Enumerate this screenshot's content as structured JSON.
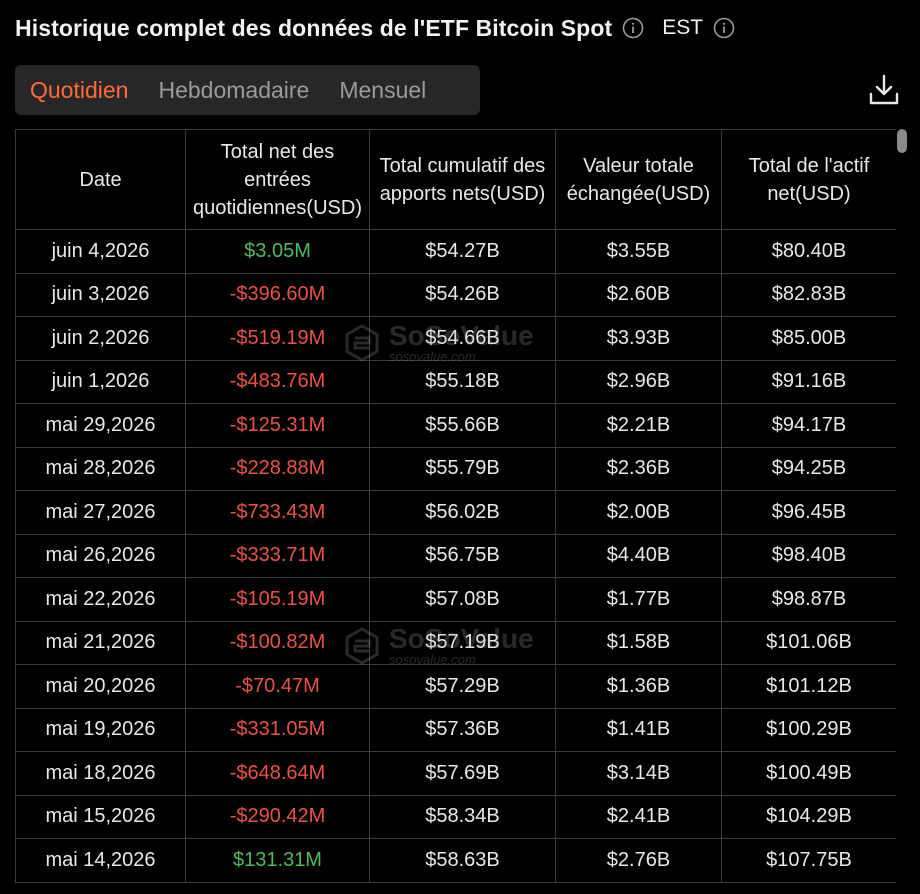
{
  "header": {
    "title": "Historique complet des données de l'ETF Bitcoin Spot",
    "timezone": "EST"
  },
  "tabs": [
    {
      "label": "Quotidien",
      "active": true
    },
    {
      "label": "Hebdomadaire",
      "active": false
    },
    {
      "label": "Mensuel",
      "active": false
    }
  ],
  "table": {
    "columns": [
      "Date",
      "Total net des entrées quotidiennes(USD)",
      "Total cumulatif des apports nets(USD)",
      "Valeur totale échangée(USD)",
      "Total de l'actif net(USD)"
    ],
    "rows": [
      {
        "date": "juin 4,2026",
        "daily_net_inflow": "$3.05M",
        "cumulative_net_inflow": "$54.27B",
        "total_value_traded": "$3.55B",
        "total_net_assets": "$80.40B"
      },
      {
        "date": "juin 3,2026",
        "daily_net_inflow": "-$396.60M",
        "cumulative_net_inflow": "$54.26B",
        "total_value_traded": "$2.60B",
        "total_net_assets": "$82.83B"
      },
      {
        "date": "juin 2,2026",
        "daily_net_inflow": "-$519.19M",
        "cumulative_net_inflow": "$54.66B",
        "total_value_traded": "$3.93B",
        "total_net_assets": "$85.00B"
      },
      {
        "date": "juin 1,2026",
        "daily_net_inflow": "-$483.76M",
        "cumulative_net_inflow": "$55.18B",
        "total_value_traded": "$2.96B",
        "total_net_assets": "$91.16B"
      },
      {
        "date": "mai 29,2026",
        "daily_net_inflow": "-$125.31M",
        "cumulative_net_inflow": "$55.66B",
        "total_value_traded": "$2.21B",
        "total_net_assets": "$94.17B"
      },
      {
        "date": "mai 28,2026",
        "daily_net_inflow": "-$228.88M",
        "cumulative_net_inflow": "$55.79B",
        "total_value_traded": "$2.36B",
        "total_net_assets": "$94.25B"
      },
      {
        "date": "mai 27,2026",
        "daily_net_inflow": "-$733.43M",
        "cumulative_net_inflow": "$56.02B",
        "total_value_traded": "$2.00B",
        "total_net_assets": "$96.45B"
      },
      {
        "date": "mai 26,2026",
        "daily_net_inflow": "-$333.71M",
        "cumulative_net_inflow": "$56.75B",
        "total_value_traded": "$4.40B",
        "total_net_assets": "$98.40B"
      },
      {
        "date": "mai 22,2026",
        "daily_net_inflow": "-$105.19M",
        "cumulative_net_inflow": "$57.08B",
        "total_value_traded": "$1.77B",
        "total_net_assets": "$98.87B"
      },
      {
        "date": "mai 21,2026",
        "daily_net_inflow": "-$100.82M",
        "cumulative_net_inflow": "$57.19B",
        "total_value_traded": "$1.58B",
        "total_net_assets": "$101.06B"
      },
      {
        "date": "mai 20,2026",
        "daily_net_inflow": "-$70.47M",
        "cumulative_net_inflow": "$57.29B",
        "total_value_traded": "$1.36B",
        "total_net_assets": "$101.12B"
      },
      {
        "date": "mai 19,2026",
        "daily_net_inflow": "-$331.05M",
        "cumulative_net_inflow": "$57.36B",
        "total_value_traded": "$1.41B",
        "total_net_assets": "$100.29B"
      },
      {
        "date": "mai 18,2026",
        "daily_net_inflow": "-$648.64M",
        "cumulative_net_inflow": "$57.69B",
        "total_value_traded": "$3.14B",
        "total_net_assets": "$100.49B"
      },
      {
        "date": "mai 15,2026",
        "daily_net_inflow": "-$290.42M",
        "cumulative_net_inflow": "$58.34B",
        "total_value_traded": "$2.41B",
        "total_net_assets": "$104.29B"
      },
      {
        "date": "mai 14,2026",
        "daily_net_inflow": "$131.31M",
        "cumulative_net_inflow": "$58.63B",
        "total_value_traded": "$2.76B",
        "total_net_assets": "$107.75B"
      }
    ]
  },
  "watermark": {
    "brand": "SoSoValue",
    "url": "sosovalue.com"
  },
  "icons": {
    "info": "info-circle-icon",
    "download": "download-icon",
    "watermark_logo": "sosovalue-logo-icon"
  },
  "colors": {
    "accent": "#ff6a3d",
    "positive": "#4cbb5c",
    "negative": "#e8524a"
  }
}
